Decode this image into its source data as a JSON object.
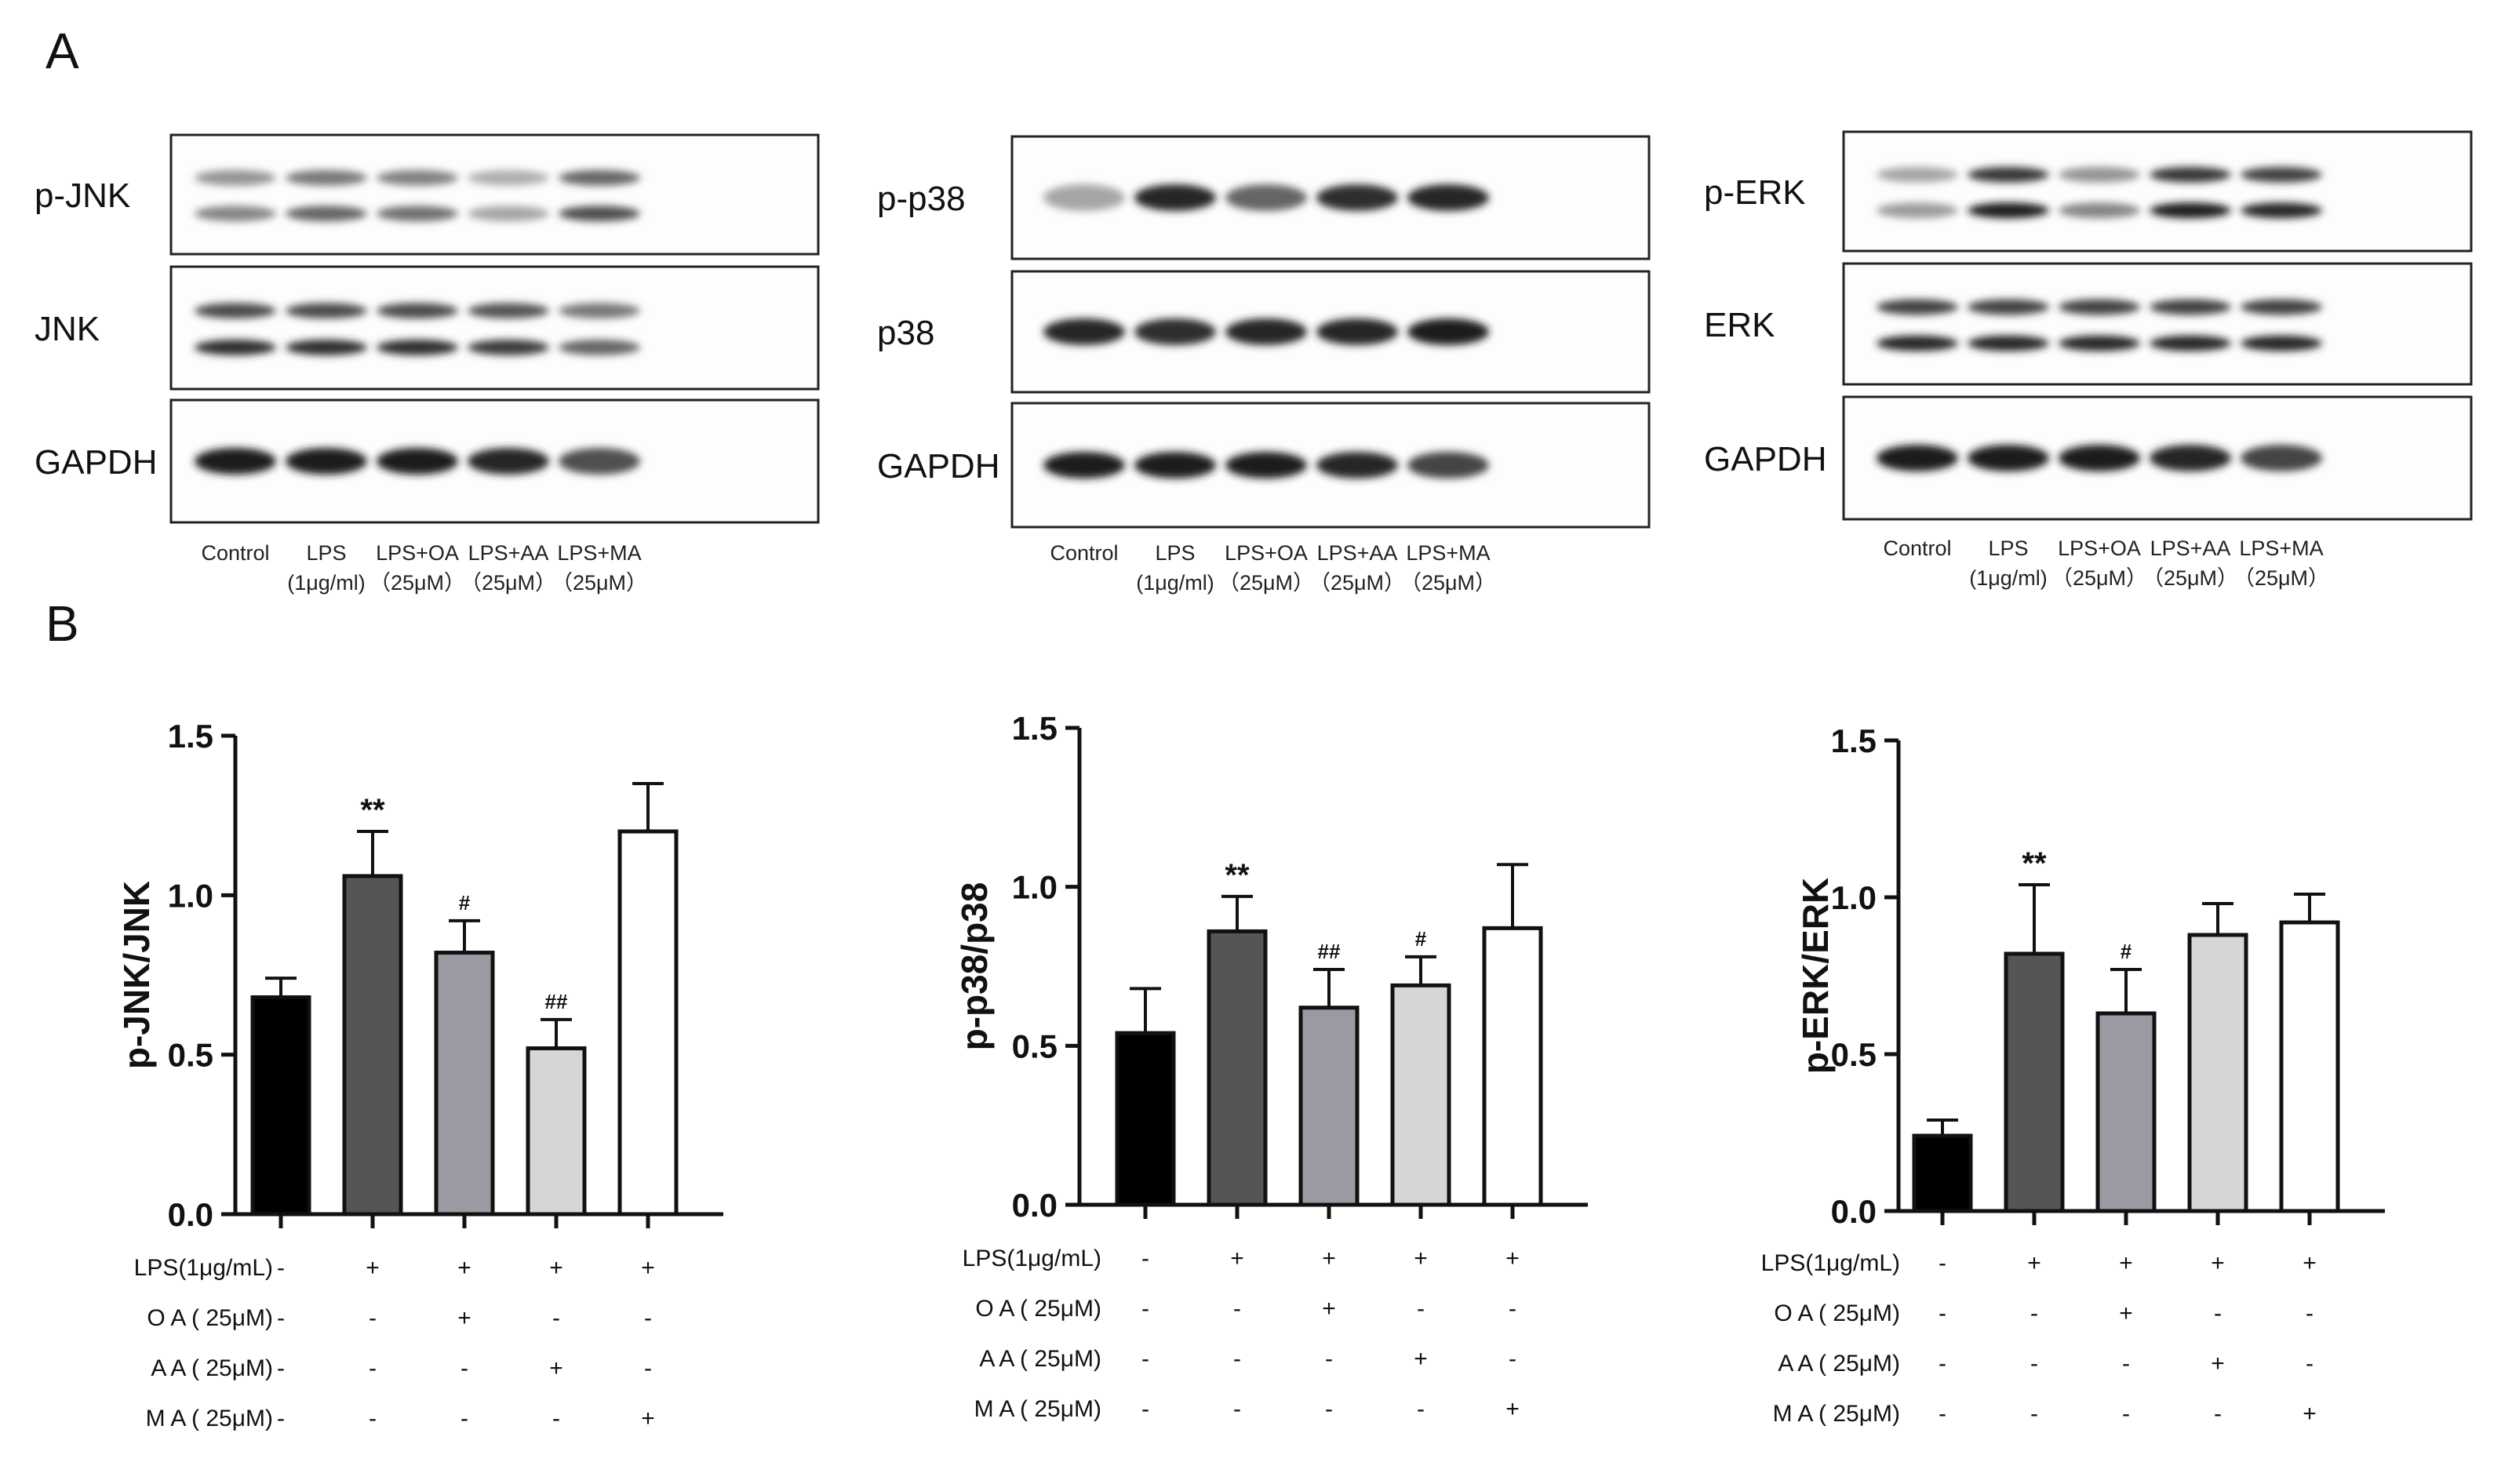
{
  "panel_labels": [
    "A",
    "B"
  ],
  "blot_panels": [
    {
      "rows": [
        {
          "label": "p-JNK",
          "double": true,
          "intensity": [
            0.45,
            0.6,
            0.55,
            0.3,
            0.7
          ]
        },
        {
          "label": "JNK",
          "double": true,
          "intensity": [
            0.85,
            0.85,
            0.85,
            0.8,
            0.6
          ]
        },
        {
          "label": "GAPDH",
          "double": false,
          "intensity": [
            0.95,
            0.95,
            0.95,
            0.9,
            0.7
          ]
        }
      ],
      "lanes": [
        {
          "name": "Control",
          "dose": ""
        },
        {
          "name": "LPS",
          "dose": "(1μg/ml)"
        },
        {
          "name": "LPS+OA",
          "dose": "（25μM）"
        },
        {
          "name": "LPS+AA",
          "dose": "（25μM）"
        },
        {
          "name": "LPS+MA",
          "dose": "（25μM）"
        }
      ]
    },
    {
      "rows": [
        {
          "label": "p-p38",
          "double": false,
          "intensity": [
            0.3,
            0.9,
            0.6,
            0.85,
            0.9
          ]
        },
        {
          "label": "p38",
          "double": false,
          "intensity": [
            0.9,
            0.85,
            0.9,
            0.9,
            0.95
          ]
        },
        {
          "label": "GAPDH",
          "double": false,
          "intensity": [
            0.95,
            0.95,
            0.95,
            0.9,
            0.75
          ]
        }
      ],
      "lanes": [
        {
          "name": "Control",
          "dose": ""
        },
        {
          "name": "LPS",
          "dose": "(1μg/ml)"
        },
        {
          "name": "LPS+OA",
          "dose": "（25μM）"
        },
        {
          "name": "LPS+AA",
          "dose": "（25μM）"
        },
        {
          "name": "LPS+MA",
          "dose": "（25μM）"
        }
      ]
    },
    {
      "rows": [
        {
          "label": "p-ERK",
          "double": true,
          "intensity": [
            0.35,
            0.95,
            0.45,
            0.95,
            0.9
          ]
        },
        {
          "label": "ERK",
          "double": true,
          "intensity": [
            0.9,
            0.9,
            0.9,
            0.9,
            0.9
          ]
        },
        {
          "label": "GAPDH",
          "double": false,
          "intensity": [
            0.95,
            0.95,
            0.95,
            0.9,
            0.75
          ]
        }
      ],
      "lanes": [
        {
          "name": "Control",
          "dose": ""
        },
        {
          "name": "LPS",
          "dose": "(1μg/ml)"
        },
        {
          "name": "LPS+OA",
          "dose": "（25μM）"
        },
        {
          "name": "LPS+AA",
          "dose": "（25μM）"
        },
        {
          "name": "LPS+MA",
          "dose": "（25μM）"
        }
      ]
    }
  ],
  "chart_data": [
    {
      "type": "bar",
      "ylabel": "p-JNK/JNK",
      "ylim": [
        0,
        1.5
      ],
      "yticks": [
        "0.0",
        "0.5",
        "1.0",
        "1.5"
      ],
      "values": [
        0.68,
        1.06,
        0.82,
        0.52,
        1.2
      ],
      "errors": [
        0.06,
        0.14,
        0.1,
        0.09,
        0.15
      ],
      "annotations": [
        "",
        "**",
        "#",
        "##",
        ""
      ],
      "bar_colors": [
        "#000000",
        "#555555",
        "#9a9aa2",
        "#d6d6d6",
        "#ffffff"
      ],
      "treatment_table": [
        {
          "label": "LPS(1μg/mL)",
          "marks": [
            "-",
            "+",
            "+",
            "+",
            "+"
          ]
        },
        {
          "label": "O A ( 25μM)",
          "marks": [
            "-",
            "-",
            "+",
            "-",
            "-"
          ]
        },
        {
          "label": "A A ( 25μM)",
          "marks": [
            "-",
            "-",
            "-",
            "+",
            "-"
          ]
        },
        {
          "label": "M A ( 25μM)",
          "marks": [
            "-",
            "-",
            "-",
            "-",
            "+"
          ]
        }
      ]
    },
    {
      "type": "bar",
      "ylabel": "p-p38/p38",
      "ylim": [
        0,
        1.5
      ],
      "yticks": [
        "0.0",
        "0.5",
        "1.0",
        "1.5"
      ],
      "values": [
        0.54,
        0.86,
        0.62,
        0.69,
        0.87
      ],
      "errors": [
        0.14,
        0.11,
        0.12,
        0.09,
        0.2
      ],
      "annotations": [
        "",
        "**",
        "##",
        "#",
        ""
      ],
      "bar_colors": [
        "#000000",
        "#555555",
        "#9a9aa2",
        "#d6d6d6",
        "#ffffff"
      ],
      "treatment_table": [
        {
          "label": "LPS(1μg/mL)",
          "marks": [
            "-",
            "+",
            "+",
            "+",
            "+"
          ]
        },
        {
          "label": "O A ( 25μM)",
          "marks": [
            "-",
            "-",
            "+",
            "-",
            "-"
          ]
        },
        {
          "label": "A A ( 25μM)",
          "marks": [
            "-",
            "-",
            "-",
            "+",
            "-"
          ]
        },
        {
          "label": "M A ( 25μM)",
          "marks": [
            "-",
            "-",
            "-",
            "-",
            "+"
          ]
        }
      ]
    },
    {
      "type": "bar",
      "ylabel": "p-ERK/ERK",
      "ylim": [
        0,
        1.5
      ],
      "yticks": [
        "0.0",
        "0.5",
        "1.0",
        "1.5"
      ],
      "values": [
        0.24,
        0.82,
        0.63,
        0.88,
        0.92
      ],
      "errors": [
        0.05,
        0.22,
        0.14,
        0.1,
        0.09
      ],
      "annotations": [
        "",
        "**",
        "#",
        "",
        ""
      ],
      "bar_colors": [
        "#000000",
        "#555555",
        "#9a9aa2",
        "#d6d6d6",
        "#ffffff"
      ],
      "treatment_table": [
        {
          "label": "LPS(1μg/mL)",
          "marks": [
            "-",
            "+",
            "+",
            "+",
            "+"
          ]
        },
        {
          "label": "O A ( 25μM)",
          "marks": [
            "-",
            "-",
            "+",
            "-",
            "-"
          ]
        },
        {
          "label": "A A ( 25μM)",
          "marks": [
            "-",
            "-",
            "-",
            "+",
            "-"
          ]
        },
        {
          "label": "M A ( 25μM)",
          "marks": [
            "-",
            "-",
            "-",
            "-",
            "+"
          ]
        }
      ]
    }
  ]
}
